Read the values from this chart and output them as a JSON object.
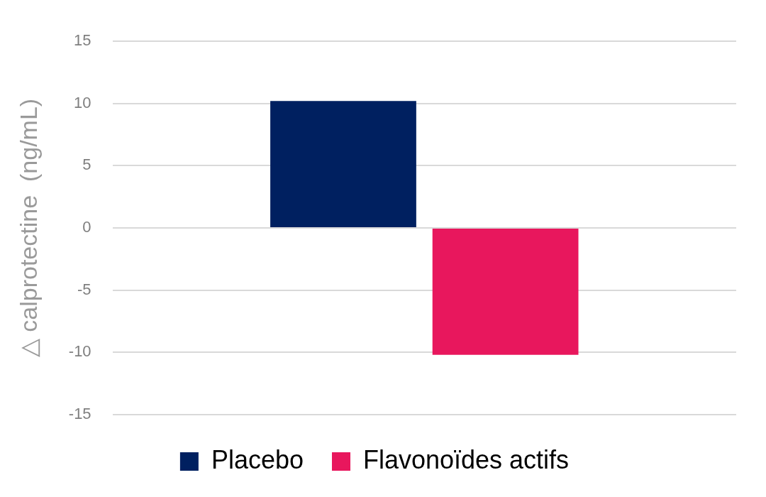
{
  "chart_data": {
    "type": "bar",
    "ylabel": "△ calprotectine  (ng/mL)",
    "categories": [
      null
    ],
    "series": [
      {
        "name": "Placebo",
        "color": "#002060",
        "values": [
          10.2
        ]
      },
      {
        "name": "Flavonoïdes actifs",
        "color": "#e8175d",
        "values": [
          -10.2
        ]
      }
    ],
    "ylim": [
      -15,
      15
    ],
    "yticks": [
      -15,
      -10,
      -5,
      0,
      5,
      10,
      15
    ],
    "grid": "y",
    "legend": "bottom"
  }
}
